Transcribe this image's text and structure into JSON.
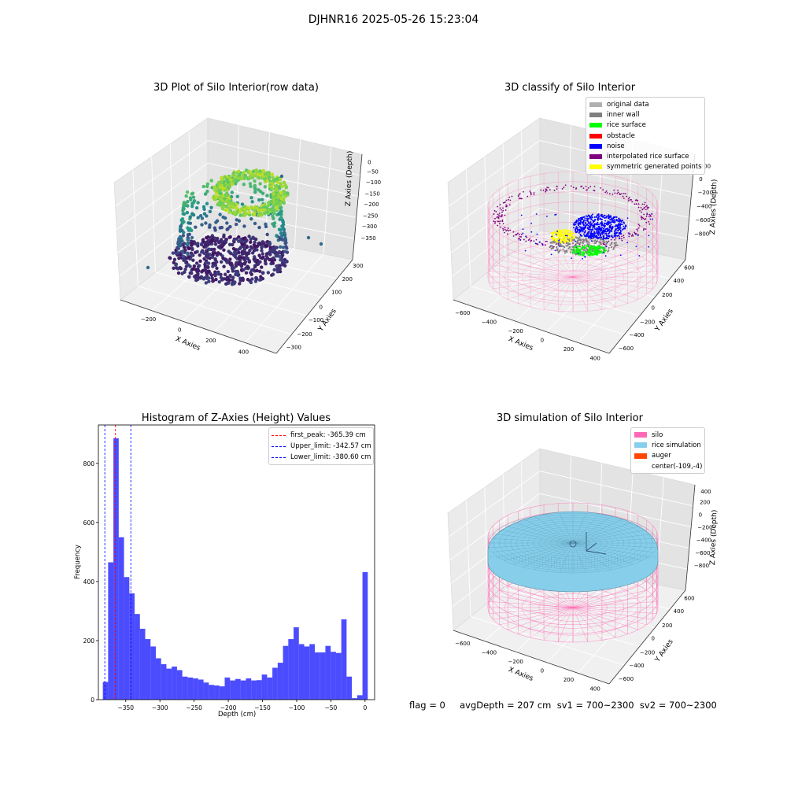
{
  "suptitle": "DJHNR16 2025-05-26 15:23:04",
  "panel_tl": {
    "title": "3D Plot of Silo Interior(row data)",
    "xlabel": "X Axies",
    "ylabel": "Y Axies",
    "zlabel": "Z Axies (Depth)",
    "x_ticks": [
      "−200",
      "0",
      "200",
      "400"
    ],
    "y_ticks": [
      "300",
      "200",
      "100",
      "0",
      "−100",
      "−200",
      "−300"
    ],
    "z_ticks": [
      "0",
      "−50",
      "−100",
      "−150",
      "−200",
      "−250",
      "−300",
      "−350"
    ]
  },
  "panel_tr": {
    "title": "3D classify of Silo Interior",
    "xlabel": "X Axies",
    "ylabel": "Y Axies",
    "zlabel": "Z Axies (Depth)",
    "x_ticks": [
      "−600",
      "−400",
      "−200",
      "0",
      "200",
      "400"
    ],
    "y_ticks": [
      "600",
      "400",
      "200",
      "0",
      "−200",
      "−400",
      "−600"
    ],
    "z_ticks": [
      "200",
      "0",
      "−200",
      "−400",
      "−600",
      "−800"
    ],
    "legend": [
      {
        "label": "original data",
        "color": "#b0b0b0"
      },
      {
        "label": "inner wall",
        "color": "#808080"
      },
      {
        "label": "rice surface",
        "color": "#00ff00"
      },
      {
        "label": "obstacle",
        "color": "#ff0000"
      },
      {
        "label": "noise",
        "color": "#0000ff"
      },
      {
        "label": "interpolated rice surface",
        "color": "#800080"
      },
      {
        "label": "symmetric generated points",
        "color": "#ffff00"
      }
    ]
  },
  "panel_bl": {
    "title": "Histogram of Z-Axies (Height) Values"
  },
  "panel_br": {
    "title": "3D simulation of Silo Interior",
    "xlabel": "X Axies",
    "ylabel": "Y Axies",
    "zlabel": "Z Axies (Depth)",
    "x_ticks": [
      "−600",
      "−400",
      "−200",
      "0",
      "200",
      "400"
    ],
    "y_ticks": [
      "600",
      "400",
      "200",
      "0",
      "−200",
      "−400",
      "−600"
    ],
    "z_ticks": [
      "400",
      "200",
      "0",
      "−200",
      "−400",
      "−600",
      "−800"
    ],
    "legend": [
      {
        "label": "silo",
        "color": "#ff69b4"
      },
      {
        "label": "rice simulation",
        "color": "#87ceeb"
      },
      {
        "label": "auger",
        "color": "#ff4500"
      },
      {
        "label": "center(-109,-4)",
        "color": ""
      }
    ]
  },
  "footer": "flag = 0     avgDepth = 207 cm  sv1 = 700~2300  sv2 = 700~2300",
  "chart_data": [
    {
      "type": "bar",
      "title": "Histogram of Z-Axies (Height) Values",
      "xlabel": "Depth (cm)",
      "ylabel": "Frequency",
      "xlim": [
        -390,
        14
      ],
      "ylim": [
        0,
        930
      ],
      "x_ticks": [
        -350,
        -300,
        -250,
        -200,
        -150,
        -100,
        -50,
        0
      ],
      "y_ticks": [
        0,
        200,
        400,
        600,
        800
      ],
      "bar_color": "#0000ff",
      "bin_start": -383.5,
      "bin_width": 7.75,
      "values": [
        60,
        465,
        885,
        550,
        415,
        360,
        290,
        240,
        205,
        180,
        140,
        120,
        105,
        112,
        100,
        78,
        75,
        72,
        68,
        58,
        50,
        48,
        45,
        75,
        65,
        70,
        65,
        72,
        65,
        66,
        85,
        75,
        108,
        125,
        182,
        205,
        245,
        188,
        180,
        188,
        160,
        160,
        182,
        162,
        158,
        272,
        78,
        5,
        15,
        432
      ],
      "vlines": [
        {
          "label": "first_peak: -365.39 cm",
          "x": -365.39,
          "color": "#ff0000"
        },
        {
          "label": "Upper_limit: -342.57 cm",
          "x": -342.57,
          "color": "#0000ff"
        },
        {
          "label": "Lower_limit: -380.60 cm",
          "x": -380.6,
          "color": "#0000ff"
        }
      ],
      "legend_position": "top-right",
      "grid": false
    }
  ]
}
